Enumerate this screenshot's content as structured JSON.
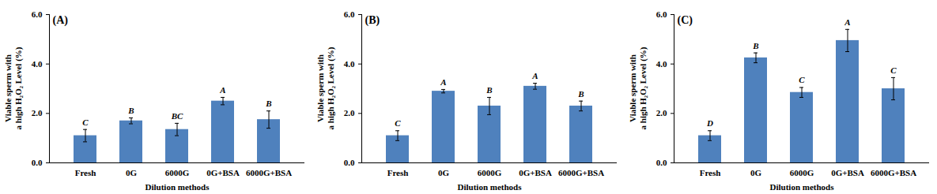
{
  "chart_data": [
    {
      "type": "bar",
      "title": "(A)",
      "categories": [
        "Fresh",
        "0G",
        "6000G",
        "0G+BSA",
        "6000G+BSA"
      ],
      "values": [
        1.1,
        1.7,
        1.35,
        2.5,
        1.75
      ],
      "errors": [
        0.25,
        0.12,
        0.25,
        0.15,
        0.35
      ],
      "annotations": [
        "C",
        "B",
        "BC",
        "A",
        "B"
      ],
      "color": "#4f81bd",
      "x_label": "Dilution methods",
      "y_label": [
        "Viable sperm with",
        "a high H₂O₂ Level (%)"
      ],
      "ylim": [
        0,
        6
      ],
      "yticks": [
        0,
        2,
        4,
        6
      ]
    },
    {
      "type": "bar",
      "title": "(B)",
      "categories": [
        "Fresh",
        "0G",
        "6000G",
        "0G+BSA",
        "6000G+BSA"
      ],
      "values": [
        1.1,
        2.9,
        2.3,
        3.1,
        2.3
      ],
      "errors": [
        0.2,
        0.07,
        0.35,
        0.12,
        0.2
      ],
      "annotations": [
        "C",
        "A",
        "B",
        "A",
        "B"
      ],
      "color": "#4f81bd",
      "x_label": "Dilution methods",
      "y_label": [
        "Viable sperm with",
        "a high H₂O₂ Level (%)"
      ],
      "ylim": [
        0,
        6
      ],
      "yticks": [
        0,
        2,
        4,
        6
      ]
    },
    {
      "type": "bar",
      "title": "(C)",
      "categories": [
        "Fresh",
        "0G",
        "6000G",
        "0G+BSA",
        "6000G+BSA"
      ],
      "values": [
        1.1,
        4.25,
        2.85,
        4.95,
        3.0
      ],
      "errors": [
        0.2,
        0.2,
        0.2,
        0.45,
        0.45
      ],
      "annotations": [
        "D",
        "B",
        "C",
        "A",
        "C"
      ],
      "color": "#4f81bd",
      "x_label": "Dilution methods",
      "y_label": [
        "Viable sperm with",
        "a high H₂O₂ Level (%)"
      ],
      "ylim": [
        0,
        6
      ],
      "yticks": [
        0,
        2,
        4,
        6
      ]
    }
  ]
}
